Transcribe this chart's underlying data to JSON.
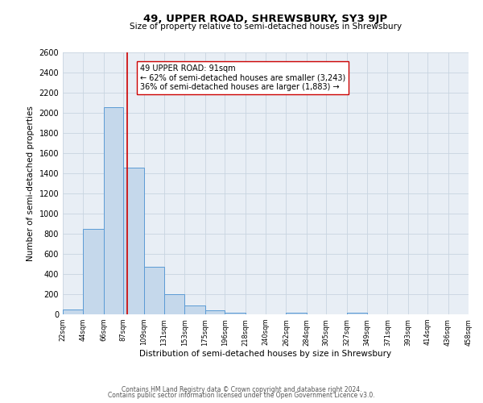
{
  "title": "49, UPPER ROAD, SHREWSBURY, SY3 9JP",
  "subtitle": "Size of property relative to semi-detached houses in Shrewsbury",
  "xlabel": "Distribution of semi-detached houses by size in Shrewsbury",
  "ylabel": "Number of semi-detached properties",
  "bar_edges": [
    22,
    44,
    66,
    87,
    109,
    131,
    153,
    175,
    196,
    218,
    240,
    262,
    284,
    305,
    327,
    349,
    371,
    393,
    414,
    436,
    458
  ],
  "bar_heights": [
    50,
    850,
    2060,
    1460,
    470,
    200,
    90,
    40,
    20,
    0,
    0,
    20,
    0,
    0,
    20,
    0,
    0,
    0,
    0,
    0
  ],
  "bar_color": "#c5d8eb",
  "bar_edge_color": "#5b9bd5",
  "property_line_x": 91,
  "property_line_color": "#cc0000",
  "annotation_title": "49 UPPER ROAD: 91sqm",
  "annotation_line1": "← 62% of semi-detached houses are smaller (3,243)",
  "annotation_line2": "36% of semi-detached houses are larger (1,883) →",
  "annotation_box_color": "#ffffff",
  "annotation_box_edge_color": "#cc0000",
  "ylim": [
    0,
    2600
  ],
  "yticks": [
    0,
    200,
    400,
    600,
    800,
    1000,
    1200,
    1400,
    1600,
    1800,
    2000,
    2200,
    2400,
    2600
  ],
  "tick_labels": [
    "22sqm",
    "44sqm",
    "66sqm",
    "87sqm",
    "109sqm",
    "131sqm",
    "153sqm",
    "175sqm",
    "196sqm",
    "218sqm",
    "240sqm",
    "262sqm",
    "284sqm",
    "305sqm",
    "327sqm",
    "349sqm",
    "371sqm",
    "393sqm",
    "414sqm",
    "436sqm",
    "458sqm"
  ],
  "footer1": "Contains HM Land Registry data © Crown copyright and database right 2024.",
  "footer2": "Contains public sector information licensed under the Open Government Licence v3.0.",
  "background_color": "#ffffff",
  "axes_background_color": "#e8eef5",
  "grid_color": "#c8d4e0"
}
